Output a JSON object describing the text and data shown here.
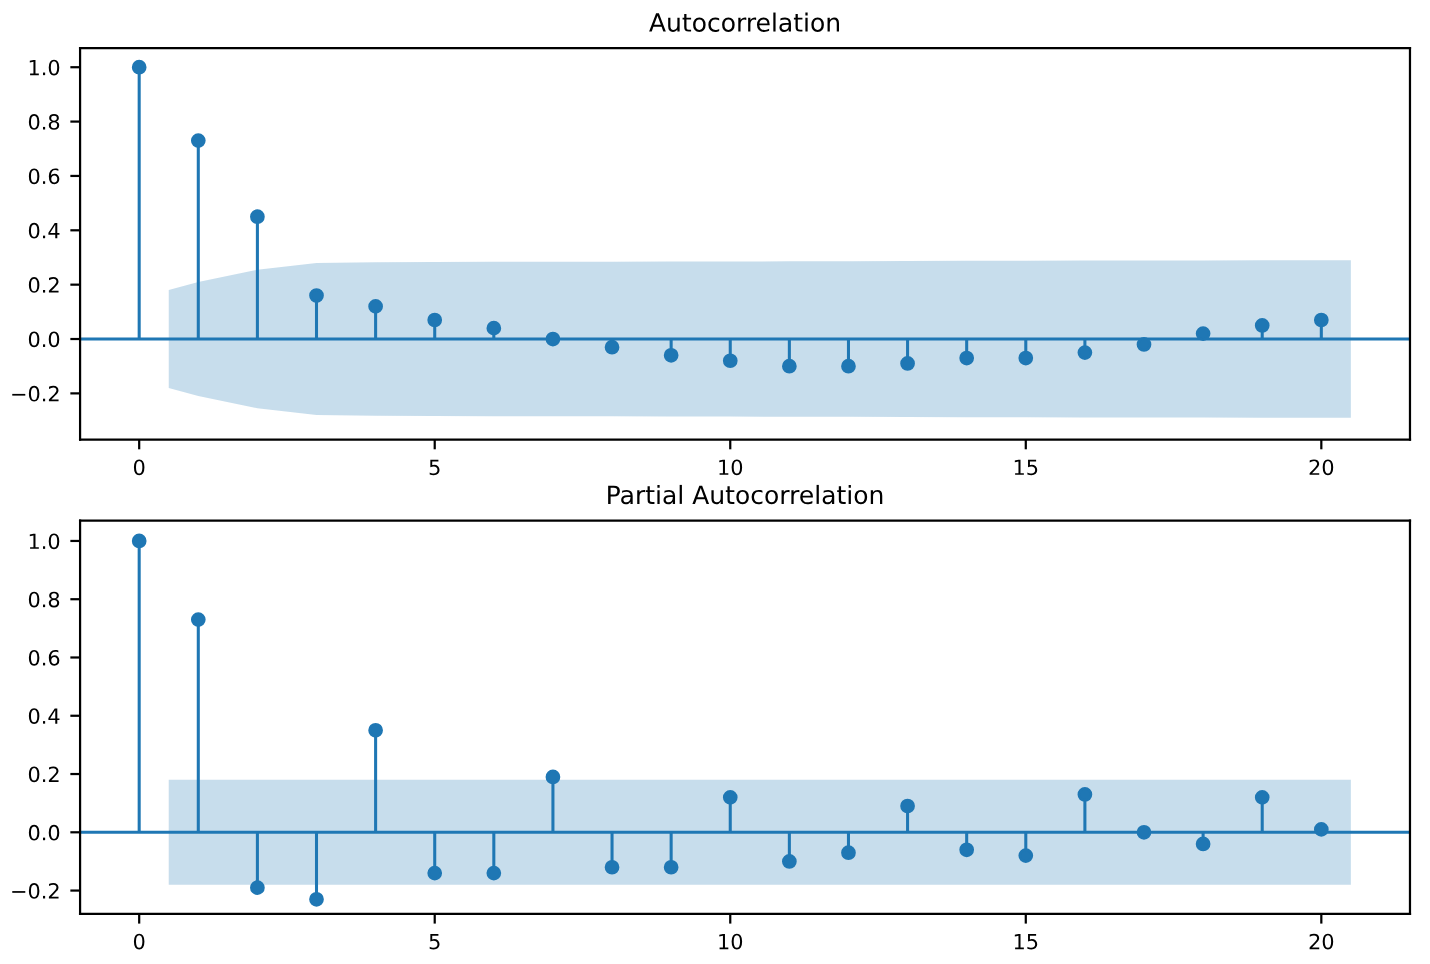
{
  "chart_data": [
    {
      "type": "lollipop",
      "title": "Autocorrelation",
      "xlim": [
        -1,
        21.5
      ],
      "ylim": [
        -0.37,
        1.07
      ],
      "xticks": [
        0,
        5,
        10,
        15,
        20
      ],
      "yticks": [
        {
          "value": -0.2,
          "label": "−0.2"
        },
        {
          "value": 0,
          "label": "0.0"
        },
        {
          "value": 0.2,
          "label": "0.2"
        },
        {
          "value": 0.4,
          "label": "0.4"
        },
        {
          "value": 0.6,
          "label": "0.6"
        },
        {
          "value": 0.8,
          "label": "0.8"
        },
        {
          "value": 1.0,
          "label": "1.0"
        }
      ],
      "marker": "circle",
      "grid": false,
      "legend": false,
      "series": [
        {
          "type": "line",
          "marker": "none",
          "color": "#1f77b4",
          "x": [
            -1,
            0.5,
            1,
            2,
            3,
            4,
            5,
            6,
            7,
            8,
            9,
            10,
            11,
            12,
            13,
            14,
            15,
            16,
            17,
            18,
            19,
            20,
            20.5,
            21.5
          ],
          "values": [
            0,
            0,
            0,
            0,
            0,
            0,
            0,
            0,
            0,
            0,
            0,
            0,
            0,
            0,
            0,
            0,
            0,
            0,
            0,
            0,
            0,
            0,
            0,
            0
          ],
          "lower": [
            null,
            -0.18,
            -0.21,
            -0.255,
            -0.28,
            -0.282,
            -0.283,
            -0.284,
            -0.284,
            -0.284,
            -0.285,
            -0.285,
            -0.286,
            -0.286,
            -0.287,
            -0.288,
            -0.288,
            -0.289,
            -0.289,
            -0.289,
            -0.29,
            -0.29,
            -0.29,
            null
          ],
          "upper": [
            null,
            0.18,
            0.21,
            0.255,
            0.28,
            0.282,
            0.283,
            0.284,
            0.284,
            0.284,
            0.285,
            0.285,
            0.286,
            0.286,
            0.287,
            0.288,
            0.288,
            0.289,
            0.289,
            0.289,
            0.29,
            0.29,
            0.29,
            null
          ]
        },
        {
          "color": "#1f77b4",
          "x": [
            0,
            1,
            2,
            3,
            4,
            5,
            6,
            7,
            8,
            9,
            10,
            11,
            12,
            13,
            14,
            15,
            16,
            17,
            18,
            19,
            20
          ],
          "values": [
            1.0,
            0.73,
            0.45,
            0.16,
            0.12,
            0.07,
            0.04,
            0.0,
            -0.03,
            -0.06,
            -0.08,
            -0.1,
            -0.1,
            -0.09,
            -0.07,
            -0.07,
            -0.05,
            -0.02,
            0.02,
            0.05,
            0.07
          ]
        }
      ]
    },
    {
      "type": "lollipop",
      "title": "Partial Autocorrelation",
      "xlim": [
        -1,
        21.5
      ],
      "ylim": [
        -0.28,
        1.07
      ],
      "xticks": [
        0,
        5,
        10,
        15,
        20
      ],
      "yticks": [
        {
          "value": -0.2,
          "label": "−0.2"
        },
        {
          "value": 0,
          "label": "0.0"
        },
        {
          "value": 0.2,
          "label": "0.2"
        },
        {
          "value": 0.4,
          "label": "0.4"
        },
        {
          "value": 0.6,
          "label": "0.6"
        },
        {
          "value": 0.8,
          "label": "0.8"
        },
        {
          "value": 1.0,
          "label": "1.0"
        }
      ],
      "marker": "circle",
      "grid": false,
      "legend": false,
      "series": [
        {
          "type": "line",
          "marker": "none",
          "color": "#1f77b4",
          "x": [
            -1,
            0.5,
            20.5,
            21.5
          ],
          "values": [
            0,
            0,
            0,
            0
          ],
          "lower": [
            null,
            -0.18,
            -0.18,
            null
          ],
          "upper": [
            null,
            0.18,
            0.18,
            null
          ]
        },
        {
          "color": "#1f77b4",
          "x": [
            0,
            1,
            2,
            3,
            4,
            5,
            6,
            7,
            8,
            9,
            10,
            11,
            12,
            13,
            14,
            15,
            16,
            17,
            18,
            19,
            20
          ],
          "values": [
            1.0,
            0.73,
            -0.19,
            -0.23,
            0.35,
            -0.14,
            -0.14,
            0.19,
            -0.12,
            -0.12,
            0.12,
            -0.1,
            -0.07,
            0.09,
            -0.06,
            -0.08,
            0.13,
            0.0,
            -0.04,
            0.12,
            0.01
          ]
        }
      ]
    }
  ]
}
